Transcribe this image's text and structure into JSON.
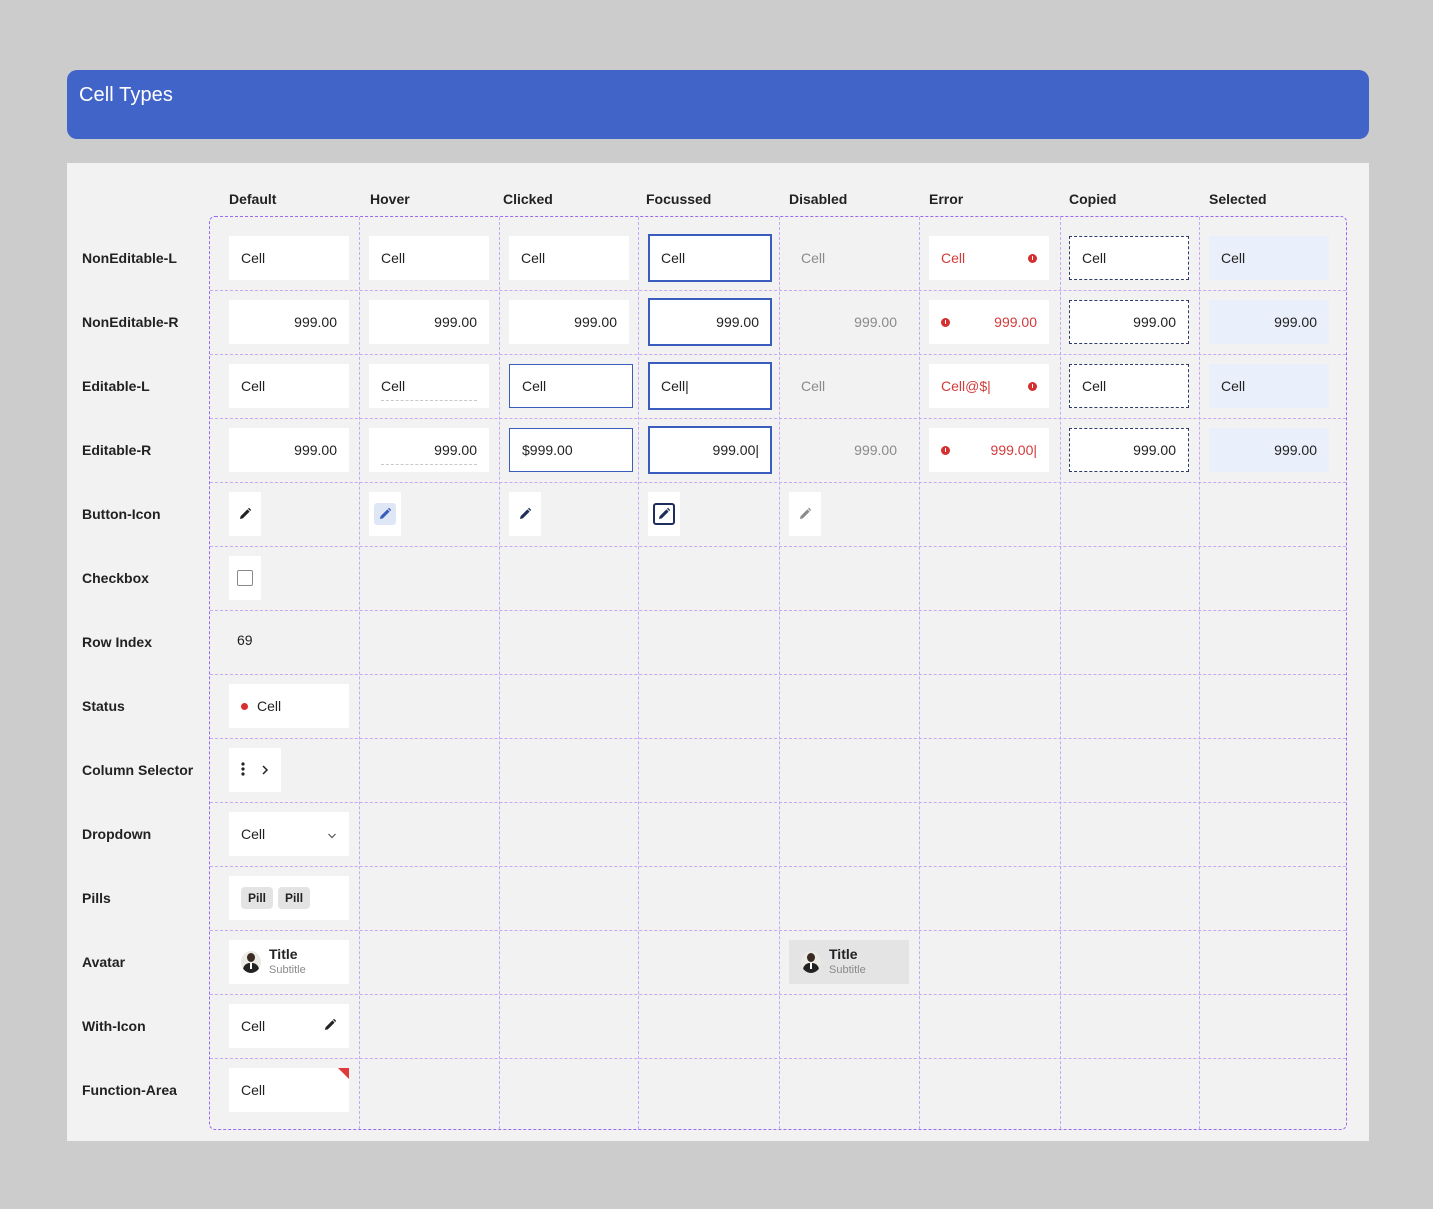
{
  "title": "Cell Types",
  "columns": [
    "Default",
    "Hover",
    "Clicked",
    "Focussed",
    "Disabled",
    "Error",
    "Copied",
    "Selected"
  ],
  "rows": [
    "NonEditable-L",
    "NonEditable-R",
    "Editable-L",
    "Editable-R",
    "Button-Icon",
    "Checkbox",
    "Row Index",
    "Status",
    "Column Selector",
    "Dropdown",
    "Pills",
    "Avatar",
    "With-Icon",
    "Function-Area"
  ],
  "cells": {
    "noneditable_l": [
      "Cell",
      "Cell",
      "Cell",
      "Cell",
      "Cell",
      "Cell",
      "Cell",
      "Cell"
    ],
    "noneditable_r": [
      "999.00",
      "999.00",
      "999.00",
      "999.00",
      "999.00",
      "999.00",
      "999.00",
      "999.00"
    ],
    "editable_l": [
      "Cell",
      "Cell",
      "Cell",
      "Cell|",
      "Cell",
      "Cell@$|",
      "Cell",
      "Cell"
    ],
    "editable_r": [
      "999.00",
      "999.00",
      "$999.00",
      "999.00|",
      "999.00",
      "999.00|",
      "999.00",
      "999.00"
    ]
  },
  "row_index": "69",
  "status": {
    "label": "Cell",
    "dot_color": "#d62f2f"
  },
  "dropdown": {
    "value": "Cell"
  },
  "pills": [
    "Pill",
    "Pill"
  ],
  "avatar": {
    "title": "Title",
    "subtitle": "Subtitle"
  },
  "with_icon": {
    "label": "Cell",
    "icon": "pencil-icon"
  },
  "function_area": {
    "label": "Cell",
    "marker_color": "#e03a3a"
  },
  "colors": {
    "header": "#4164c9",
    "focus_border": "#3a5cbf",
    "error": "#d23b3b",
    "selected_bg": "#e9f0fb",
    "grid_dash": "#9a6bf0"
  }
}
